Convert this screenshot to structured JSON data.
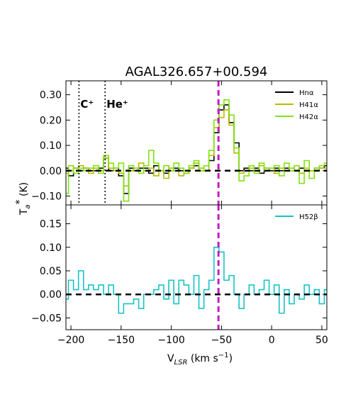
{
  "chart_data": [
    {
      "panel": "top",
      "type": "line",
      "title": "AGAL326.657+00.594",
      "ylabel": "T_a* (K)",
      "xlim": [
        -205,
        55
      ],
      "ylim": [
        -0.135,
        0.355
      ],
      "yticks": [
        -0.1,
        0.0,
        0.1,
        0.2,
        0.3
      ],
      "ytick_labels": [
        "−0.10",
        "0.00",
        "0.10",
        "0.20",
        "0.30"
      ],
      "grid": false,
      "legend_position": "top-right",
      "step": true,
      "zero_line": 0,
      "vline": -53,
      "annotations": [
        {
          "x": -192,
          "text": "C⁺"
        },
        {
          "x": -166,
          "text": "He⁺"
        }
      ],
      "series": [
        {
          "name": "Hnα",
          "color": "#000000",
          "x": [
            -205,
            -200,
            -195,
            -190,
            -185,
            -180,
            -175,
            -170,
            -165,
            -160,
            -155,
            -150,
            -145,
            -140,
            -135,
            -130,
            -125,
            -120,
            -115,
            -110,
            -105,
            -100,
            -95,
            -90,
            -85,
            -80,
            -75,
            -70,
            -65,
            -60,
            -55,
            -50,
            -45,
            -40,
            -35,
            -30,
            -25,
            -20,
            -15,
            -10,
            -5,
            0,
            5,
            10,
            15,
            20,
            25,
            30,
            35,
            40,
            45,
            50,
            55
          ],
          "y": [
            0.01,
            -0.02,
            0.01,
            0.0,
            0.01,
            0.0,
            0.0,
            0.01,
            0.05,
            0.0,
            0.01,
            -0.02,
            -0.09,
            0.01,
            0.0,
            0.01,
            0.01,
            -0.01,
            0.02,
            0.0,
            -0.01,
            0.0,
            0.01,
            0.0,
            -0.01,
            0.01,
            0.02,
            0.0,
            0.0,
            0.04,
            0.15,
            0.24,
            0.26,
            0.19,
            0.11,
            0.0,
            0.01,
            0.0,
            0.01,
            -0.01,
            0.01,
            0.0,
            0.01,
            0.0,
            0.01,
            0.0,
            0.0,
            0.01,
            0.0,
            0.0,
            0.01,
            0.01,
            0.02
          ]
        },
        {
          "name": "H41α",
          "color": "#b5bd00",
          "x": [
            -205,
            -200,
            -195,
            -190,
            -185,
            -180,
            -175,
            -170,
            -165,
            -160,
            -155,
            -150,
            -145,
            -140,
            -135,
            -130,
            -125,
            -120,
            -115,
            -110,
            -105,
            -100,
            -95,
            -90,
            -85,
            -80,
            -75,
            -70,
            -65,
            -60,
            -55,
            -50,
            -45,
            -40,
            -35,
            -30,
            -25,
            -20,
            -15,
            -10,
            -5,
            0,
            5,
            10,
            15,
            20,
            25,
            30,
            35,
            40,
            45,
            50,
            55
          ],
          "y": [
            -0.01,
            0.0,
            0.01,
            0.02,
            0.01,
            -0.01,
            0.01,
            0.0,
            0.05,
            0.01,
            0.0,
            -0.01,
            -0.06,
            0.0,
            0.01,
            0.03,
            0.0,
            0.01,
            -0.02,
            0.0,
            -0.03,
            0.01,
            0.0,
            -0.02,
            0.0,
            0.01,
            0.03,
            0.01,
            0.0,
            0.06,
            0.17,
            0.21,
            0.24,
            0.18,
            0.07,
            -0.01,
            0.0,
            0.01,
            0.0,
            0.02,
            0.0,
            0.01,
            -0.01,
            0.01,
            0.0,
            0.01,
            0.0,
            -0.01,
            0.01,
            0.0,
            0.0,
            0.01,
            0.01
          ]
        },
        {
          "name": "H42α",
          "color": "#7fe40c",
          "x": [
            -205,
            -200,
            -195,
            -190,
            -185,
            -180,
            -175,
            -170,
            -165,
            -160,
            -155,
            -150,
            -145,
            -140,
            -135,
            -130,
            -125,
            -120,
            -115,
            -110,
            -105,
            -100,
            -95,
            -90,
            -85,
            -80,
            -75,
            -70,
            -65,
            -60,
            -55,
            -50,
            -45,
            -40,
            -35,
            -30,
            -25,
            -20,
            -15,
            -10,
            -5,
            0,
            5,
            10,
            15,
            20,
            25,
            30,
            35,
            40,
            45,
            50,
            55
          ],
          "y": [
            -0.09,
            0.02,
            -0.01,
            0.01,
            0.0,
            0.01,
            0.02,
            -0.01,
            0.06,
            0.03,
            0.01,
            0.03,
            -0.12,
            0.02,
            0.01,
            -0.01,
            0.02,
            0.08,
            0.03,
            0.0,
            0.02,
            0.0,
            0.03,
            0.01,
            -0.01,
            0.02,
            0.04,
            0.0,
            0.02,
            0.08,
            0.2,
            0.26,
            0.28,
            0.22,
            0.09,
            -0.04,
            -0.02,
            0.02,
            -0.01,
            0.03,
            0.01,
            0.01,
            0.02,
            -0.02,
            0.03,
            0.0,
            0.02,
            -0.05,
            0.04,
            -0.03,
            0.01,
            0.02,
            0.03
          ]
        }
      ]
    },
    {
      "panel": "bottom",
      "type": "line",
      "xlabel": "V_LSR (km s⁻¹)",
      "xlim": [
        -205,
        55
      ],
      "ylim": [
        -0.075,
        0.19
      ],
      "xticks": [
        -200,
        -150,
        -100,
        -50,
        0,
        50
      ],
      "xtick_labels": [
        "−200",
        "−150",
        "−100",
        "−50",
        "0",
        "50"
      ],
      "yticks": [
        -0.05,
        0.0,
        0.05,
        0.1,
        0.15
      ],
      "ytick_labels": [
        "−0.05",
        "0.00",
        "0.05",
        "0.10",
        "0.15"
      ],
      "grid": false,
      "legend_position": "top-right",
      "step": true,
      "zero_line": 0,
      "vline": -53,
      "series": [
        {
          "name": "H52β",
          "color": "#17c3c6",
          "x": [
            -205,
            -200,
            -195,
            -190,
            -185,
            -180,
            -175,
            -170,
            -165,
            -160,
            -155,
            -150,
            -145,
            -140,
            -135,
            -130,
            -125,
            -120,
            -115,
            -110,
            -105,
            -100,
            -95,
            -90,
            -85,
            -80,
            -75,
            -70,
            -65,
            -60,
            -55,
            -50,
            -45,
            -40,
            -35,
            -30,
            -25,
            -20,
            -15,
            -10,
            -5,
            0,
            5,
            10,
            15,
            20,
            25,
            30,
            35,
            40,
            45,
            50,
            55
          ],
          "y": [
            -0.01,
            0.03,
            0.01,
            0.05,
            0.01,
            0.02,
            0.01,
            0.02,
            0.0,
            0.02,
            0.0,
            -0.04,
            -0.02,
            -0.02,
            -0.01,
            -0.03,
            0.0,
            0.0,
            0.01,
            0.02,
            -0.01,
            0.03,
            -0.02,
            0.03,
            0.02,
            0.0,
            0.04,
            -0.03,
            0.01,
            0.03,
            0.1,
            0.09,
            0.03,
            0.04,
            0.0,
            -0.03,
            0.0,
            0.02,
            0.0,
            0.01,
            0.03,
            0.0,
            0.02,
            -0.04,
            0.01,
            -0.02,
            0.0,
            -0.01,
            0.02,
            0.0,
            0.01,
            -0.02,
            0.01
          ]
        }
      ]
    }
  ]
}
